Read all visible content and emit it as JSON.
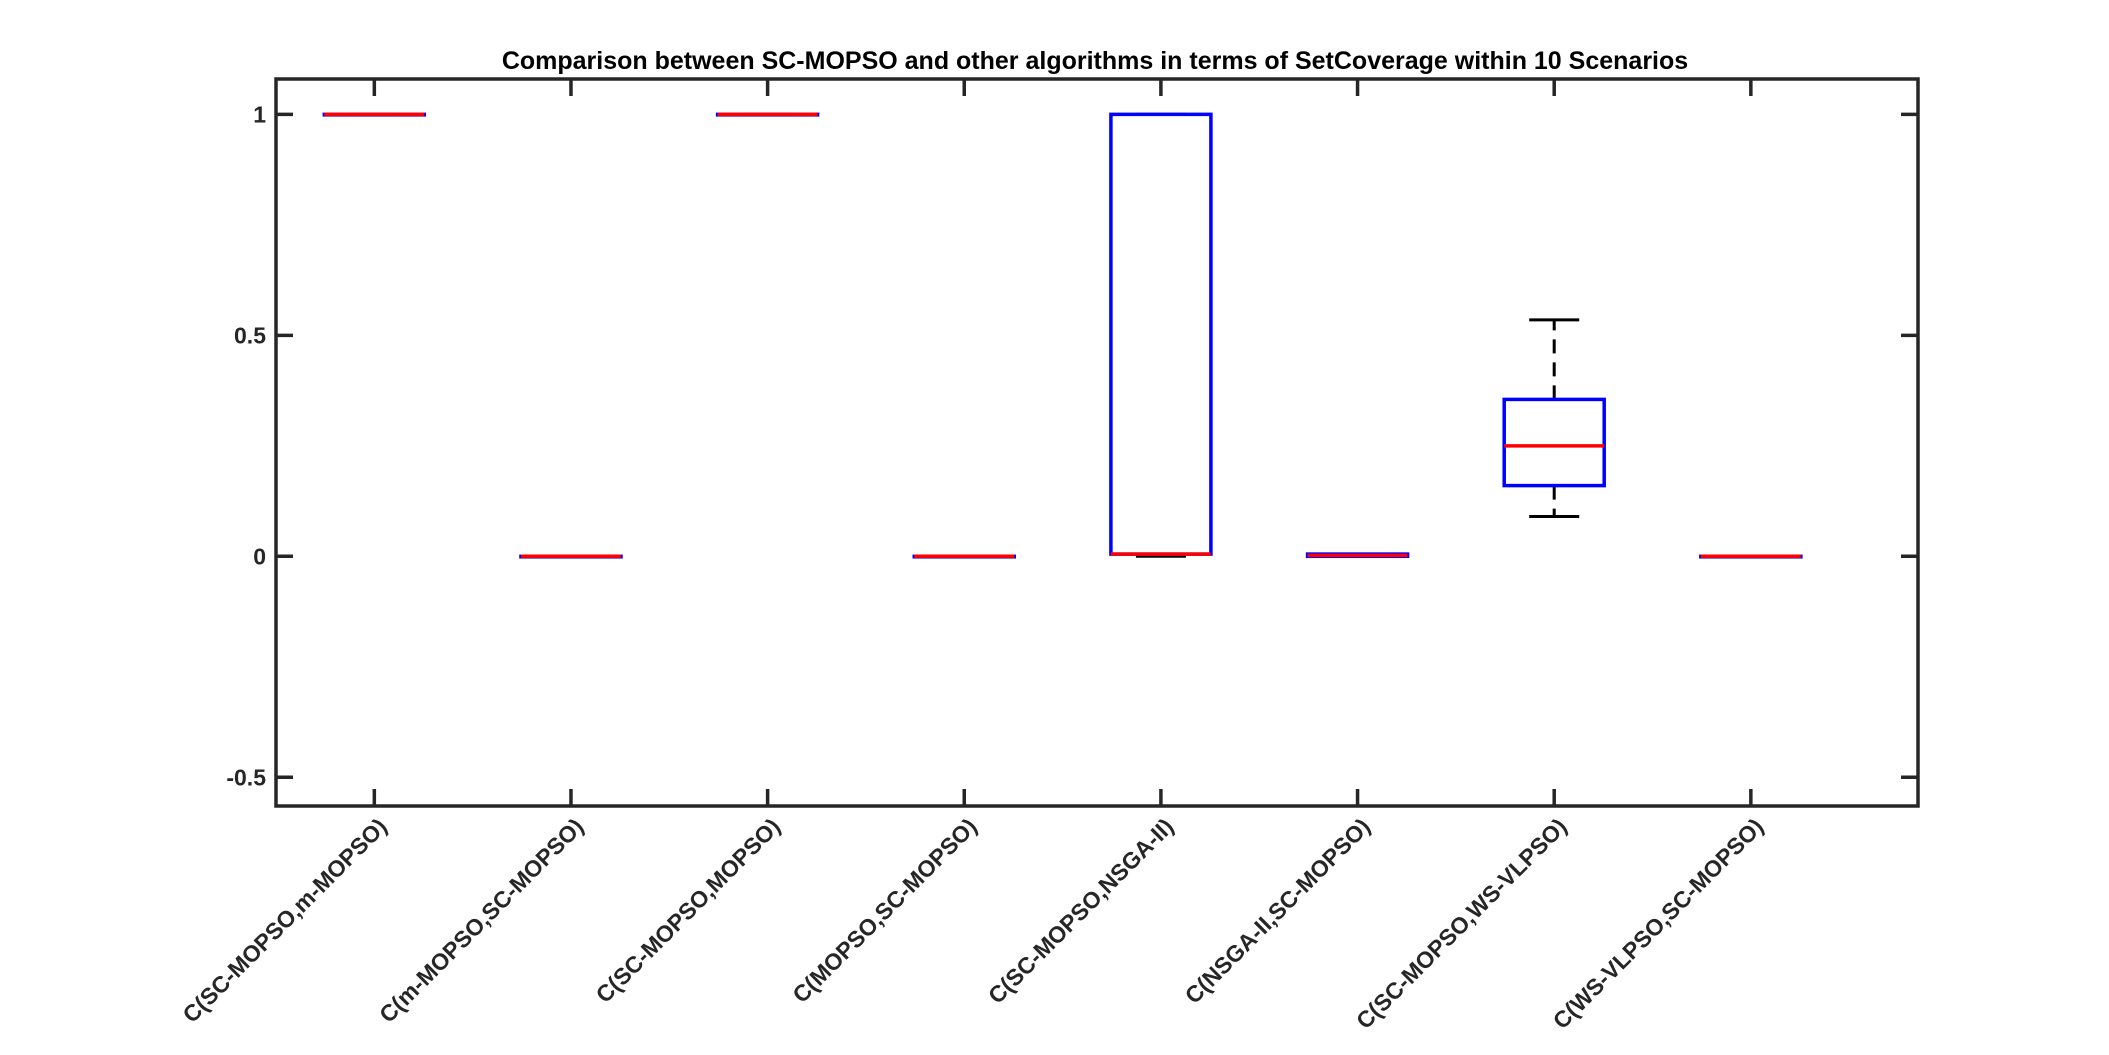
{
  "chart_data": {
    "type": "box",
    "title": "Comparison between SC-MOPSO and other algorithms in terms of SetCoverage within 10 Scenarios",
    "xlabel": "",
    "ylabel": "",
    "ylim": [
      -0.565,
      1.08
    ],
    "yticks": [
      -0.5,
      0,
      0.5,
      1
    ],
    "ytick_labels": [
      "-0.5",
      "0",
      "0.5",
      "1"
    ],
    "categories": [
      "C(SC-MOPSO,m-MOPSO)",
      "C(m-MOPSO,SC-MOPSO)",
      "C(SC-MOPSO,MOPSO)",
      "C(MOPSO,SC-MOPSO)",
      "C(SC-MOPSO,NSGA-II)",
      "C(NSGA-II,SC-MOPSO)",
      "C(SC-MOPSO,WS-VLPSO)",
      "C(WS-VLPSO,SC-MOPSO)"
    ],
    "boxes": [
      {
        "whisker_low": 1,
        "q1": 1,
        "median": 1,
        "q3": 1,
        "whisker_high": 1
      },
      {
        "whisker_low": 0,
        "q1": 0,
        "median": 0,
        "q3": 0,
        "whisker_high": 0
      },
      {
        "whisker_low": 1,
        "q1": 1,
        "median": 1,
        "q3": 1,
        "whisker_high": 1
      },
      {
        "whisker_low": 0,
        "q1": 0,
        "median": 0,
        "q3": 0,
        "whisker_high": 0
      },
      {
        "whisker_low": 0,
        "q1": 0.005,
        "median": 0.005,
        "q3": 1,
        "whisker_high": 1
      },
      {
        "whisker_low": 0,
        "q1": 0,
        "median": 0.002,
        "q3": 0.005,
        "whisker_high": 0.005
      },
      {
        "whisker_low": 0.09,
        "q1": 0.16,
        "median": 0.25,
        "q3": 0.355,
        "whisker_high": 0.535
      },
      {
        "whisker_low": 0,
        "q1": 0,
        "median": 0,
        "q3": 0,
        "whisker_high": 0
      }
    ],
    "colors": {
      "box": "#0000ff",
      "median": "#ff0000",
      "whisker": "#000000",
      "axes": "#262626"
    },
    "grid": false
  }
}
